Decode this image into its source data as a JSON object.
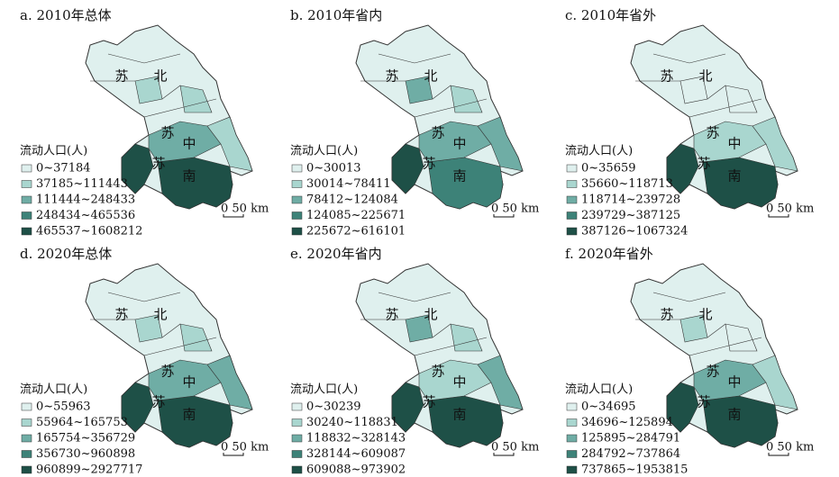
{
  "panels": [
    {
      "title": "a. 2010年总体",
      "legend_title": "流动人口(人)",
      "legend": [
        "0~37184",
        "37185~111443",
        "111444~248433",
        "248434~465536",
        "465537~1608212"
      ],
      "labels": [
        "苏",
        "北",
        "苏",
        "中",
        "苏",
        "南"
      ],
      "scale": "0 50 km"
    },
    {
      "title": "b. 2010年省内",
      "legend_title": "流动人口(人)",
      "legend": [
        "0~30013",
        "30014~78411",
        "78412~124084",
        "124085~225671",
        "225672~616101"
      ],
      "labels": [
        "苏",
        "北",
        "苏",
        "中",
        "苏",
        "南"
      ],
      "scale": "0 50 km"
    },
    {
      "title": "c. 2010年省外",
      "legend_title": "流动人口(人)",
      "legend": [
        "0~35659",
        "35660~118713",
        "118714~239728",
        "239729~387125",
        "387126~1067324"
      ],
      "labels": [
        "苏",
        "北",
        "苏",
        "中",
        "苏",
        "南"
      ],
      "scale": "0 50 km"
    },
    {
      "title": "d. 2020年总体",
      "legend_title": "流动人口(人)",
      "legend": [
        "0~55963",
        "55964~165753",
        "165754~356729",
        "356730~960898",
        "960899~2927717"
      ],
      "labels": [
        "苏",
        "北",
        "苏",
        "中",
        "苏",
        "南"
      ],
      "scale": "0 50 km"
    },
    {
      "title": "e. 2020年省内",
      "legend_title": "流动人口(人)",
      "legend": [
        "0~30239",
        "30240~118831",
        "118832~328143",
        "328144~609087",
        "609088~973902"
      ],
      "labels": [
        "苏",
        "北",
        "苏",
        "中",
        "苏",
        "南"
      ],
      "scale": "0 50 km"
    },
    {
      "title": "f. 2020年省外",
      "legend_title": "流动人口(人)",
      "legend": [
        "0~34695",
        "34696~125894",
        "125895~284791",
        "284792~737864",
        "737865~1953815"
      ],
      "labels": [
        "苏",
        "北",
        "苏",
        "中",
        "苏",
        "南"
      ],
      "scale": "0 50 km"
    }
  ],
  "colors": [
    "#dff0ee",
    "#a9d6cf",
    "#6fada5",
    "#3d8278",
    "#1e5047"
  ]
}
